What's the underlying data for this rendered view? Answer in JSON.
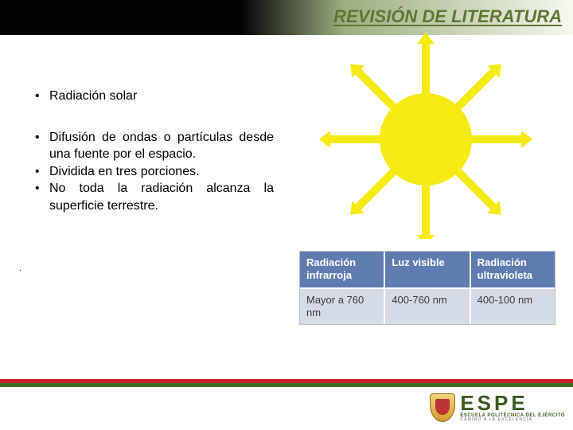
{
  "header": {
    "title": "REVISIÓN DE LITERATURA"
  },
  "bullets": {
    "b1": "Radiación solar",
    "b2": "Difusión de ondas o partículas desde una fuente por el espacio.",
    "b3": "Dividida en tres porciones.",
    "b4": "No toda la radiación alcanza la superficie terrestre."
  },
  "tiny": ".",
  "sun": {
    "fill": "#f5ea13",
    "bg": "#ffffff",
    "core_r": 58,
    "ray_count": 8,
    "ray_len": 120,
    "ray_width": 10
  },
  "table": {
    "header_bg": "#5e7cb0",
    "header_color": "#ffffff",
    "body_bg": "#d4dbe7",
    "body_color": "#3a3a3a",
    "cols": [
      {
        "h": "Radiación infrarroja",
        "v": "Mayor a 760 nm"
      },
      {
        "h": "Luz visible",
        "v": "400-760 nm"
      },
      {
        "h": "Radiación ultravioleta",
        "v": "400-100 nm"
      }
    ]
  },
  "footer": {
    "stripe_top": "#c81f2e",
    "stripe_bottom": "#3e6b1f",
    "logo_main": "ESPE",
    "logo_sub1": "ESCUELA POLITÉCNICA DEL EJÉRCITO",
    "logo_sub2": "CAMINO A LA EXCELENCIA"
  }
}
